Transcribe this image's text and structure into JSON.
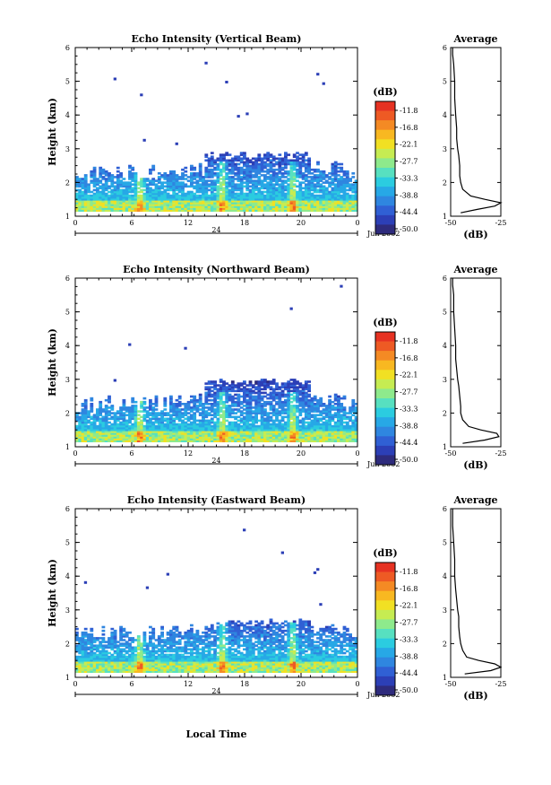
{
  "colorbar": {
    "unit_label": "(dB)",
    "levels": [
      "-11.8",
      "-16.8",
      "-22.1",
      "-27.7",
      "-33.3",
      "-38.8",
      "-44.4",
      "-50.0"
    ],
    "colors": [
      "#2e2b7c",
      "#2c3fb6",
      "#3060d4",
      "#2f86e0",
      "#27a8e6",
      "#2bcce0",
      "#57e0c0",
      "#8eea8c",
      "#c6ec52",
      "#f1e023",
      "#f8b821",
      "#f48a24",
      "#ee5a24",
      "#e63222"
    ]
  },
  "footer": {
    "xaxis_title": "Local Time"
  },
  "chart_data": [
    {
      "type": "heatmap",
      "title": "Echo Intensity (Vertical Beam)",
      "ylabel": "Height (km)",
      "xlim": [
        0,
        24
      ],
      "ylim": [
        1,
        6
      ],
      "x_ticks": [
        "0",
        "6",
        "12",
        "18",
        "20",
        "0"
      ],
      "y_ticks": [
        "1",
        "2",
        "3",
        "4",
        "5",
        "6"
      ],
      "date_marker": "24",
      "date_label": "Jun 2002",
      "colorbar_unit": "(dB)",
      "colorbar_levels": [
        -11.8,
        -16.8,
        -22.1,
        -27.7,
        -33.3,
        -38.8,
        -44.4,
        -50.0
      ],
      "echo_top_km": 2.9,
      "average_profile": {
        "title": "Average",
        "xlabel": "(dB)",
        "x_ticks": [
          "-50",
          "-25"
        ],
        "xlim": [
          -50,
          -25
        ],
        "height_km": [
          1.1,
          1.2,
          1.3,
          1.4,
          1.5,
          1.6,
          1.8,
          2.0,
          2.2,
          2.5,
          2.8,
          3.0,
          3.3,
          3.6,
          4.0,
          4.5,
          5.0,
          5.5,
          5.8,
          6.0
        ],
        "db": [
          -45,
          -37,
          -28,
          -25,
          -33,
          -40,
          -44,
          -45,
          -45.5,
          -45.5,
          -46,
          -46.5,
          -47,
          -47,
          -47.5,
          -48,
          -48,
          -48.5,
          -49,
          -49
        ]
      }
    },
    {
      "type": "heatmap",
      "title": "Echo Intensity (Northward Beam)",
      "ylabel": "Height (km)",
      "xlim": [
        0,
        24
      ],
      "ylim": [
        1,
        6
      ],
      "x_ticks": [
        "0",
        "6",
        "12",
        "18",
        "20",
        "0"
      ],
      "y_ticks": [
        "1",
        "2",
        "3",
        "4",
        "5",
        "6"
      ],
      "date_marker": "24",
      "date_label": "Jun 2002",
      "colorbar_unit": "(dB)",
      "colorbar_levels": [
        -11.8,
        -16.8,
        -22.1,
        -27.7,
        -33.3,
        -38.8,
        -44.4,
        -50.0
      ],
      "echo_top_km": 3.0,
      "average_profile": {
        "title": "Average",
        "xlabel": "(dB)",
        "x_ticks": [
          "-50",
          "-25"
        ],
        "xlim": [
          -50,
          -25
        ],
        "height_km": [
          1.1,
          1.2,
          1.3,
          1.4,
          1.5,
          1.6,
          1.8,
          2.0,
          2.2,
          2.5,
          2.8,
          3.0,
          3.3,
          3.6,
          4.0,
          4.5,
          5.0,
          5.5,
          5.8,
          6.0
        ],
        "db": [
          -44,
          -33,
          -26,
          -27,
          -35,
          -41,
          -44,
          -45,
          -45,
          -45.5,
          -46,
          -46.5,
          -47,
          -47.5,
          -47.5,
          -48,
          -48.5,
          -48.5,
          -49,
          -49
        ]
      }
    },
    {
      "type": "heatmap",
      "title": "Echo Intensity (Eastward Beam)",
      "ylabel": "Height (km)",
      "xlim": [
        0,
        24
      ],
      "ylim": [
        1,
        6
      ],
      "x_ticks": [
        "0",
        "6",
        "12",
        "18",
        "20",
        "0"
      ],
      "y_ticks": [
        "1",
        "2",
        "3",
        "4",
        "5",
        "6"
      ],
      "date_marker": "24",
      "date_label": "Jun 2002",
      "colorbar_unit": "(dB)",
      "colorbar_levels": [
        -11.8,
        -16.8,
        -22.1,
        -27.7,
        -33.3,
        -38.8,
        -44.4,
        -50.0
      ],
      "echo_top_km": 2.7,
      "average_profile": {
        "title": "Average",
        "xlabel": "(dB)",
        "x_ticks": [
          "-50",
          "-25"
        ],
        "xlim": [
          -50,
          -25
        ],
        "height_km": [
          1.1,
          1.2,
          1.3,
          1.4,
          1.5,
          1.6,
          1.8,
          2.0,
          2.2,
          2.5,
          2.8,
          3.0,
          3.3,
          3.6,
          4.0,
          4.5,
          5.0,
          5.5,
          5.8,
          6.0
        ],
        "db": [
          -43,
          -30,
          -25,
          -28,
          -36,
          -42,
          -44,
          -45,
          -45.5,
          -46,
          -46,
          -46.5,
          -47,
          -47.5,
          -48,
          -48,
          -48.5,
          -49,
          -49,
          -49
        ]
      }
    }
  ]
}
